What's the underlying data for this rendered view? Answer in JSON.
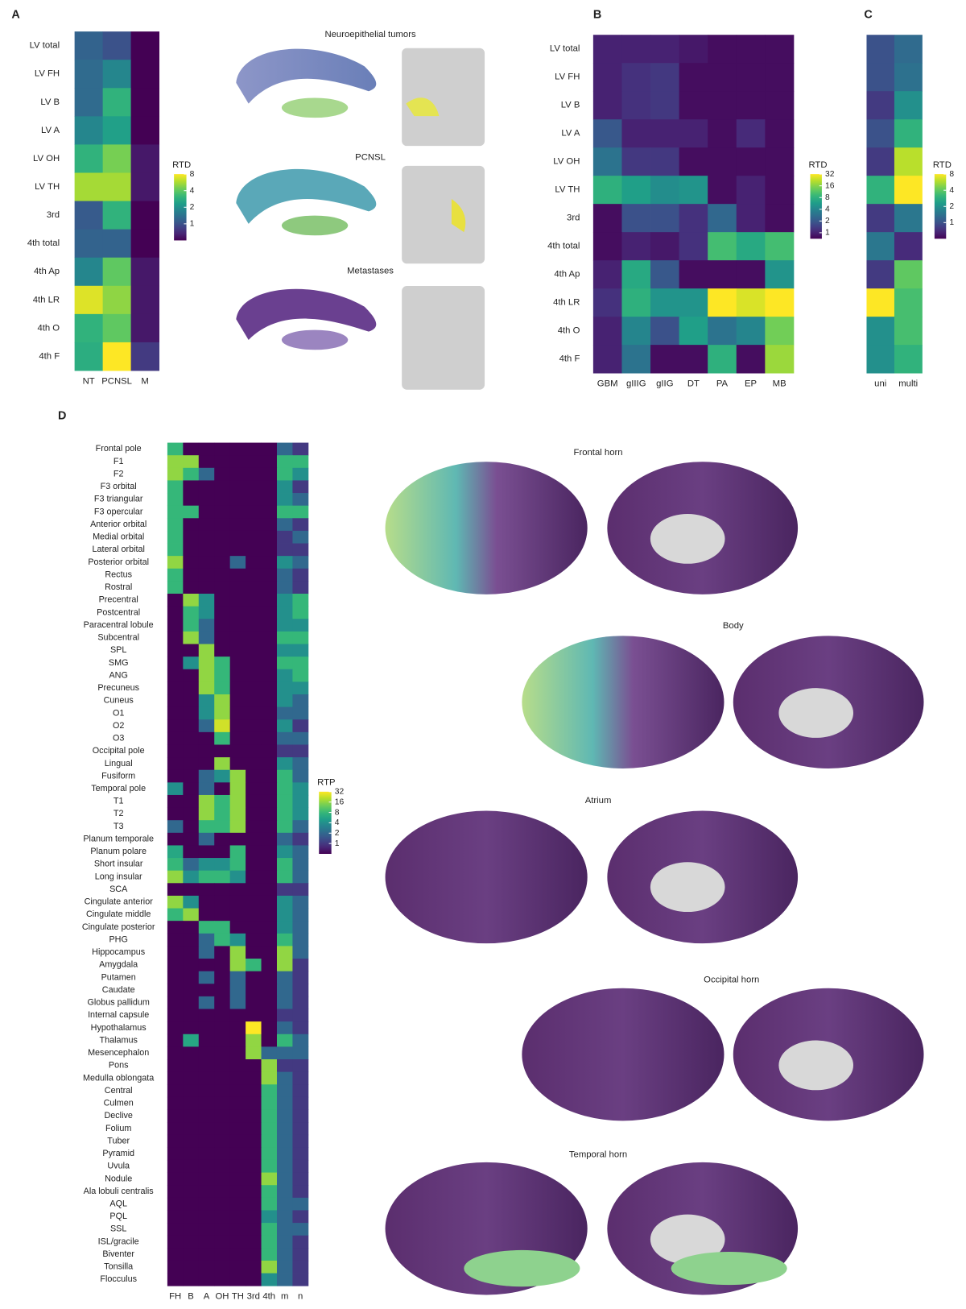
{
  "chart_data": [
    {
      "type": "heatmap",
      "panel": "A",
      "colormap": "viridis",
      "log_scale": true,
      "colorbar_title": "RTD",
      "zlim": [
        0.5,
        8
      ],
      "zticks": [
        1,
        2,
        4,
        8
      ],
      "categories": [
        "NT",
        "PCNSL",
        "M"
      ],
      "rows": [
        "LV total",
        "LV FH",
        "LV B",
        "LV A",
        "LV OH",
        "LV TH",
        "3rd",
        "4th total",
        "4th Ap",
        "4th LR",
        "4th O",
        "4th F"
      ],
      "values": [
        [
          1.2,
          1,
          0.5
        ],
        [
          1.3,
          1.8,
          0.5
        ],
        [
          1.3,
          3,
          0.5
        ],
        [
          1.8,
          2.4,
          0.5
        ],
        [
          3,
          4.5,
          0.6
        ],
        [
          5.5,
          5.5,
          0.6
        ],
        [
          1.1,
          3,
          0.5
        ],
        [
          1.2,
          1.2,
          0.5
        ],
        [
          1.8,
          4,
          0.6
        ],
        [
          7,
          5,
          0.6
        ],
        [
          3,
          4,
          0.6
        ],
        [
          2.8,
          8,
          0.8
        ]
      ],
      "annotations": [
        "Neuroepithelial tumors",
        "PCNSL",
        "Metastases"
      ]
    },
    {
      "type": "heatmap",
      "panel": "B",
      "colormap": "viridis",
      "log_scale": true,
      "colorbar_title": "RTD",
      "zlim": [
        0.7,
        32
      ],
      "zticks": [
        1,
        2,
        4,
        8,
        16,
        32
      ],
      "categories": [
        "GBM",
        "gIIIG",
        "gIIG",
        "DT",
        "PA",
        "EP",
        "MB"
      ],
      "rows": [
        "LV total",
        "LV FH",
        "LV B",
        "LV A",
        "LV OH",
        "LV TH",
        "3rd",
        "4th total",
        "4th Ap",
        "4th LR",
        "4th O",
        "4th F"
      ],
      "values": [
        [
          1,
          1,
          1,
          0.9,
          0.8,
          0.8,
          0.8
        ],
        [
          1,
          1.2,
          1.3,
          0.8,
          0.8,
          0.8,
          0.8
        ],
        [
          1,
          1.2,
          1.3,
          0.8,
          0.8,
          0.8,
          0.8
        ],
        [
          2,
          1,
          1,
          1,
          0.8,
          1.1,
          0.8
        ],
        [
          3,
          1.3,
          1.3,
          0.8,
          0.8,
          0.8,
          0.8
        ],
        [
          8,
          6,
          4.5,
          5,
          0.8,
          1,
          0.8
        ],
        [
          0.8,
          1.8,
          1.8,
          1.2,
          2.5,
          1,
          0.8
        ],
        [
          0.8,
          1,
          0.9,
          1.2,
          10,
          7,
          10
        ],
        [
          1,
          7,
          2,
          0.8,
          0.8,
          0.8,
          5
        ],
        [
          1.2,
          8,
          5,
          5,
          32,
          26,
          32
        ],
        [
          1,
          4,
          1.8,
          6,
          3,
          4,
          14
        ],
        [
          1,
          3,
          0.8,
          0.8,
          8,
          0.8,
          18
        ]
      ]
    },
    {
      "type": "heatmap",
      "panel": "C",
      "colormap": "viridis",
      "log_scale": true,
      "colorbar_title": "RTD",
      "zlim": [
        0.5,
        8
      ],
      "zticks": [
        1,
        2,
        4,
        8
      ],
      "categories": [
        "uni",
        "multi"
      ],
      "rows": [
        "LV total",
        "LV FH",
        "LV B",
        "LV A",
        "LV OH",
        "LV TH",
        "3rd",
        "4th total",
        "4th Ap",
        "4th LR",
        "4th O",
        "4th F"
      ],
      "values": [
        [
          1,
          1.3
        ],
        [
          1,
          1.4
        ],
        [
          0.8,
          2
        ],
        [
          1,
          3
        ],
        [
          0.8,
          6
        ],
        [
          3,
          8
        ],
        [
          0.8,
          1.5
        ],
        [
          1.5,
          0.7
        ],
        [
          0.8,
          4
        ],
        [
          8,
          3.5
        ],
        [
          2,
          3.5
        ],
        [
          2,
          3
        ]
      ]
    },
    {
      "type": "heatmap",
      "panel": "D",
      "colormap": "viridis",
      "log_scale": true,
      "colorbar_title": "RTP",
      "zlim": [
        0.5,
        32
      ],
      "zticks": [
        1,
        2,
        4,
        8,
        16,
        32
      ],
      "categories": [
        "FH",
        "B",
        "A",
        "OH",
        "TH",
        "3rd",
        "4th",
        "m",
        "n"
      ],
      "rows": [
        "Frontal pole",
        "F1",
        "F2",
        "F3 orbital",
        "F3 triangular",
        "F3 opercular",
        "Anterior orbital",
        "Medial orbital",
        "Lateral orbital",
        "Posterior orbital",
        "Rectus",
        "Rostral",
        "Precentral",
        "Postcentral",
        "Paracentral lobule",
        "Subcentral",
        "SPL",
        "SMG",
        "ANG",
        "Precuneus",
        "Cuneus",
        "O1",
        "O2",
        "O3",
        "Occipital pole",
        "Lingual",
        "Fusiform",
        "Temporal pole",
        "T1",
        "T2",
        "T3",
        "Planum temporale",
        "Planum polare",
        "Short insular",
        "Long insular",
        "SCA",
        "Cingulate anterior",
        "Cingulate middle",
        "Cingulate posterior",
        "PHG",
        "Hippocampus",
        "Amygdala",
        "Putamen",
        "Caudate",
        "Globus pallidum",
        "Internal capsule",
        "Hypothalamus",
        "Thalamus",
        "Mesencephalon",
        "Pons",
        "Medulla oblongata",
        "Central",
        "Culmen",
        "Declive",
        "Folium",
        "Tuber",
        "Pyramid",
        "Uvula",
        "Nodule",
        "Ala lobuli centralis",
        "AQL",
        "PQL",
        "SSL",
        "ISL/gracile",
        "Biventer",
        "Tonsilla",
        "Flocculus"
      ],
      "values": [
        [
          8,
          0.5,
          0.5,
          0.5,
          0.5,
          0.5,
          0.5,
          2,
          1
        ],
        [
          16,
          16,
          0.5,
          0.5,
          0.5,
          0.5,
          0.5,
          8,
          8
        ],
        [
          16,
          8,
          2,
          0.5,
          0.5,
          0.5,
          0.5,
          8,
          4
        ],
        [
          8,
          0.5,
          0.5,
          0.5,
          0.5,
          0.5,
          0.5,
          4,
          1
        ],
        [
          8,
          0.5,
          0.5,
          0.5,
          0.5,
          0.5,
          0.5,
          4,
          2
        ],
        [
          8,
          8,
          0.5,
          0.5,
          0.5,
          0.5,
          0.5,
          8,
          8
        ],
        [
          8,
          0.5,
          0.5,
          0.5,
          0.5,
          0.5,
          0.5,
          2,
          1
        ],
        [
          8,
          0.5,
          0.5,
          0.5,
          0.5,
          0.5,
          0.5,
          1,
          2
        ],
        [
          8,
          0.5,
          0.5,
          0.5,
          0.5,
          0.5,
          0.5,
          1,
          1
        ],
        [
          16,
          0.5,
          0.5,
          0.5,
          2,
          0.5,
          0.5,
          4,
          2
        ],
        [
          8,
          0.5,
          0.5,
          0.5,
          0.5,
          0.5,
          0.5,
          2,
          1
        ],
        [
          8,
          0.5,
          0.5,
          0.5,
          0.5,
          0.5,
          0.5,
          2,
          1
        ],
        [
          0.5,
          16,
          4,
          0.5,
          0.5,
          0.5,
          0.5,
          4,
          8
        ],
        [
          0.5,
          8,
          4,
          0.5,
          0.5,
          0.5,
          0.5,
          4,
          8
        ],
        [
          0.5,
          8,
          2,
          0.5,
          0.5,
          0.5,
          0.5,
          4,
          4
        ],
        [
          0.5,
          16,
          2,
          0.5,
          0.5,
          0.5,
          0.5,
          8,
          8
        ],
        [
          0.5,
          0.5,
          16,
          0.5,
          0.5,
          0.5,
          0.5,
          4,
          4
        ],
        [
          0.5,
          4,
          16,
          8,
          0.5,
          0.5,
          0.5,
          8,
          8
        ],
        [
          0.5,
          0.5,
          16,
          8,
          0.5,
          0.5,
          0.5,
          4,
          8
        ],
        [
          0.5,
          0.5,
          16,
          8,
          0.5,
          0.5,
          0.5,
          4,
          4
        ],
        [
          0.5,
          0.5,
          4,
          16,
          0.5,
          0.5,
          0.5,
          4,
          2
        ],
        [
          0.5,
          0.5,
          4,
          16,
          0.5,
          0.5,
          0.5,
          2,
          2
        ],
        [
          0.5,
          0.5,
          2,
          24,
          0.5,
          0.5,
          0.5,
          4,
          1
        ],
        [
          0.5,
          0.5,
          0.5,
          8,
          0.5,
          0.5,
          0.5,
          2,
          2
        ],
        [
          0.5,
          0.5,
          0.5,
          0.5,
          0.5,
          0.5,
          0.5,
          1,
          1
        ],
        [
          0.5,
          0.5,
          0.5,
          16,
          0.5,
          0.5,
          0.5,
          4,
          2
        ],
        [
          0.5,
          0.5,
          2,
          4,
          16,
          0.5,
          0.5,
          8,
          2
        ],
        [
          4,
          0.5,
          2,
          0.5,
          16,
          0.5,
          0.5,
          8,
          4
        ],
        [
          0.5,
          0.5,
          16,
          8,
          16,
          0.5,
          0.5,
          8,
          4
        ],
        [
          0.5,
          0.5,
          16,
          8,
          16,
          0.5,
          0.5,
          8,
          4
        ],
        [
          2,
          0.5,
          8,
          8,
          16,
          0.5,
          0.5,
          8,
          2
        ],
        [
          0.5,
          0.5,
          2,
          0.5,
          0.5,
          0.5,
          0.5,
          2,
          1
        ],
        [
          6,
          0.5,
          0.5,
          0.5,
          8,
          0.5,
          0.5,
          4,
          2
        ],
        [
          8,
          2,
          4,
          4,
          8,
          0.5,
          0.5,
          8,
          2
        ],
        [
          16,
          4,
          8,
          8,
          4,
          0.5,
          0.5,
          8,
          2
        ],
        [
          0.5,
          0.5,
          0.5,
          0.5,
          0.5,
          0.5,
          0.5,
          1,
          1
        ],
        [
          16,
          4,
          0.5,
          0.5,
          0.5,
          0.5,
          0.5,
          4,
          2
        ],
        [
          8,
          16,
          0.5,
          0.5,
          0.5,
          0.5,
          0.5,
          4,
          2
        ],
        [
          0.5,
          0.5,
          8,
          8,
          0.5,
          0.5,
          0.5,
          4,
          2
        ],
        [
          0.5,
          0.5,
          2,
          8,
          4,
          0.5,
          0.5,
          8,
          2
        ],
        [
          0.5,
          0.5,
          2,
          0.5,
          16,
          0.5,
          0.5,
          16,
          2
        ],
        [
          0.5,
          0.5,
          0.5,
          0.5,
          16,
          8,
          0.5,
          16,
          1
        ],
        [
          0.5,
          0.5,
          2,
          0.5,
          2,
          0.5,
          0.5,
          2,
          1
        ],
        [
          0.5,
          0.5,
          0.5,
          0.5,
          2,
          0.5,
          0.5,
          2,
          1
        ],
        [
          0.5,
          0.5,
          2,
          0.5,
          2,
          0.5,
          0.5,
          2,
          1
        ],
        [
          0.5,
          0.5,
          0.5,
          0.5,
          0.5,
          0.5,
          0.5,
          1,
          1
        ],
        [
          0.5,
          0.5,
          0.5,
          0.5,
          0.5,
          32,
          0.5,
          2,
          1
        ],
        [
          0.5,
          6,
          0.5,
          0.5,
          0.5,
          16,
          0.5,
          8,
          2
        ],
        [
          0.5,
          0.5,
          0.5,
          0.5,
          0.5,
          16,
          2,
          2,
          2
        ],
        [
          0.5,
          0.5,
          0.5,
          0.5,
          0.5,
          0.5,
          16,
          1,
          1
        ],
        [
          0.5,
          0.5,
          0.5,
          0.5,
          0.5,
          0.5,
          16,
          2,
          1
        ],
        [
          0.5,
          0.5,
          0.5,
          0.5,
          0.5,
          0.5,
          8,
          2,
          1
        ],
        [
          0.5,
          0.5,
          0.5,
          0.5,
          0.5,
          0.5,
          8,
          2,
          1
        ],
        [
          0.5,
          0.5,
          0.5,
          0.5,
          0.5,
          0.5,
          8,
          2,
          1
        ],
        [
          0.5,
          0.5,
          0.5,
          0.5,
          0.5,
          0.5,
          8,
          2,
          1
        ],
        [
          0.5,
          0.5,
          0.5,
          0.5,
          0.5,
          0.5,
          8,
          2,
          1
        ],
        [
          0.5,
          0.5,
          0.5,
          0.5,
          0.5,
          0.5,
          8,
          2,
          1
        ],
        [
          0.5,
          0.5,
          0.5,
          0.5,
          0.5,
          0.5,
          8,
          2,
          1
        ],
        [
          0.5,
          0.5,
          0.5,
          0.5,
          0.5,
          0.5,
          16,
          2,
          1
        ],
        [
          0.5,
          0.5,
          0.5,
          0.5,
          0.5,
          0.5,
          8,
          2,
          1
        ],
        [
          0.5,
          0.5,
          0.5,
          0.5,
          0.5,
          0.5,
          8,
          2,
          2
        ],
        [
          0.5,
          0.5,
          0.5,
          0.5,
          0.5,
          0.5,
          4,
          2,
          1
        ],
        [
          0.5,
          0.5,
          0.5,
          0.5,
          0.5,
          0.5,
          8,
          2,
          2
        ],
        [
          0.5,
          0.5,
          0.5,
          0.5,
          0.5,
          0.5,
          8,
          2,
          1
        ],
        [
          0.5,
          0.5,
          0.5,
          0.5,
          0.5,
          0.5,
          8,
          2,
          1
        ],
        [
          0.5,
          0.5,
          0.5,
          0.5,
          0.5,
          0.5,
          16,
          2,
          1
        ],
        [
          0.5,
          0.5,
          0.5,
          0.5,
          0.5,
          0.5,
          4,
          2,
          1
        ]
      ],
      "annotations": [
        "Frontal horn",
        "Body",
        "Atrium",
        "Occipital horn",
        "Temporal horn"
      ]
    }
  ]
}
